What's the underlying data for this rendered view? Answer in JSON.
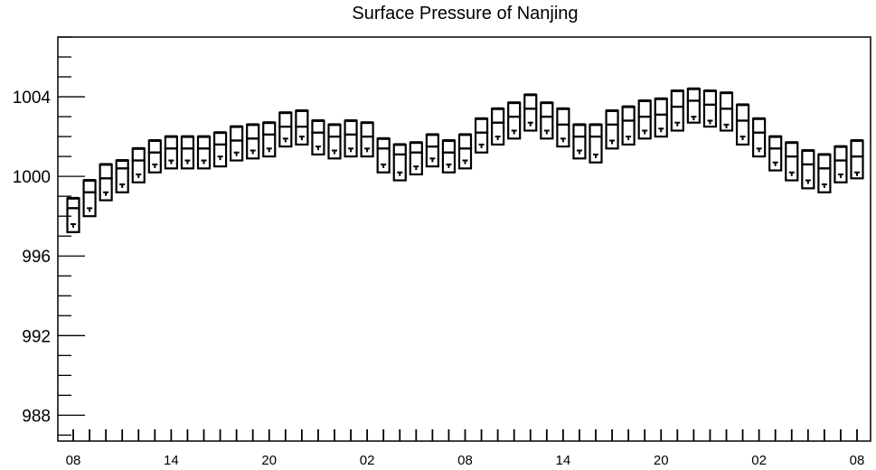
{
  "chart_data": {
    "type": "box",
    "title": "Surface Pressure of Nanjing",
    "xlabel": "",
    "ylabel": "",
    "ylim": [
      986.7,
      1007.0
    ],
    "y_ticks": [
      988,
      992,
      996,
      1000,
      1004
    ],
    "x_ticks": [
      "08",
      "14",
      "20",
      "02",
      "08",
      "14",
      "20",
      "02",
      "08"
    ],
    "x_tick_positions": [
      0,
      6,
      12,
      18,
      24,
      30,
      36,
      42,
      48
    ],
    "grid": false,
    "legend": "none",
    "series": [
      {
        "x": [
          0,
          1,
          2,
          3,
          4,
          5,
          6,
          7,
          8,
          9,
          10,
          11,
          12,
          13,
          14,
          15,
          16,
          17,
          18,
          19,
          20,
          21,
          22,
          23,
          24,
          25,
          26,
          27,
          28,
          29,
          30,
          31,
          32,
          33,
          34,
          35,
          36,
          37,
          38,
          39,
          40,
          41,
          42,
          43,
          44,
          45,
          46,
          47,
          48
        ],
        "max": [
          998.9,
          999.8,
          1000.6,
          1000.8,
          1001.4,
          1001.8,
          1002.0,
          1002.0,
          1002.0,
          1002.2,
          1002.5,
          1002.6,
          1002.7,
          1003.2,
          1003.3,
          1002.8,
          1002.6,
          1002.8,
          1002.7,
          1001.9,
          1001.6,
          1001.7,
          1002.1,
          1001.8,
          1002.1,
          1002.9,
          1003.4,
          1003.7,
          1004.1,
          1003.7,
          1003.4,
          1002.6,
          1002.6,
          1003.3,
          1003.5,
          1003.8,
          1003.9,
          1004.3,
          1004.4,
          1004.3,
          1004.2,
          1003.6,
          1002.9,
          1002.0,
          1001.7,
          1001.3,
          1001.1,
          1001.5,
          1001.8
        ],
        "q3": [
          998.4,
          999.2,
          999.9,
          1000.4,
          1000.8,
          1001.2,
          1001.4,
          1001.4,
          1001.4,
          1001.6,
          1001.8,
          1001.9,
          1002.1,
          1002.5,
          1002.5,
          1002.2,
          1002.0,
          1002.1,
          1002.0,
          1001.4,
          1001.1,
          1001.2,
          1001.5,
          1001.2,
          1001.4,
          1002.2,
          1002.7,
          1003.0,
          1003.4,
          1003.0,
          1002.6,
          1002.0,
          1002.0,
          1002.6,
          1002.8,
          1003.0,
          1003.1,
          1003.5,
          1003.8,
          1003.6,
          1003.4,
          1002.8,
          1002.2,
          1001.4,
          1001.0,
          1000.6,
          1000.4,
          1000.8,
          1001.0
        ],
        "q1": [
          997.2,
          998.0,
          998.8,
          999.2,
          999.7,
          1000.2,
          1000.4,
          1000.4,
          1000.4,
          1000.5,
          1000.8,
          1000.9,
          1001.0,
          1001.5,
          1001.6,
          1001.1,
          1000.9,
          1001.0,
          1001.0,
          1000.2,
          999.8,
          1000.1,
          1000.5,
          1000.2,
          1000.4,
          1001.2,
          1001.6,
          1001.9,
          1002.3,
          1001.9,
          1001.5,
          1000.9,
          1000.7,
          1001.4,
          1001.6,
          1001.9,
          1002.0,
          1002.3,
          1002.7,
          1002.5,
          1002.3,
          1001.6,
          1001.0,
          1000.3,
          999.8,
          999.4,
          999.2,
          999.7,
          999.9
        ],
        "mean": [
          997.6,
          998.4,
          999.2,
          999.6,
          1000.1,
          1000.6,
          1000.8,
          1000.8,
          1000.8,
          1001.0,
          1001.2,
          1001.3,
          1001.4,
          1001.9,
          1002.0,
          1001.5,
          1001.3,
          1001.4,
          1001.4,
          1000.6,
          1000.2,
          1000.5,
          1000.9,
          1000.6,
          1000.8,
          1001.6,
          1002.0,
          1002.3,
          1002.7,
          1002.3,
          1001.9,
          1001.3,
          1001.1,
          1001.8,
          1002.0,
          1002.3,
          1002.4,
          1002.7,
          1003.0,
          1002.8,
          1002.6,
          1002.0,
          1001.4,
          1000.7,
          1000.2,
          999.8,
          999.6,
          1000.1,
          1000.2
        ]
      }
    ]
  }
}
